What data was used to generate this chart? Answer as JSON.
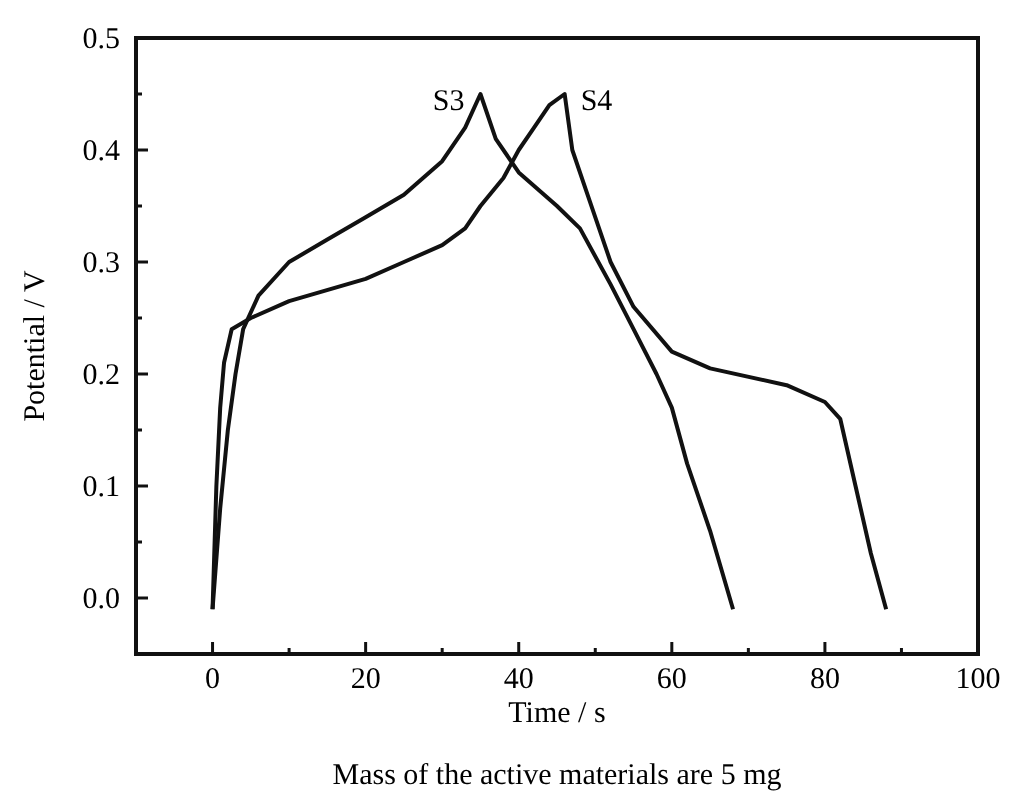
{
  "chart_data": {
    "type": "line",
    "xlabel": "Time / s",
    "ylabel": "Potential / V",
    "xlim": [
      -10,
      100
    ],
    "xticks": [
      0,
      20,
      40,
      60,
      80,
      100
    ],
    "ylim": [
      -0.05,
      0.5
    ],
    "yticks": [
      {
        "value": 0,
        "label": "0.0"
      },
      0.1,
      0.2,
      0.3,
      0.4,
      0.5
    ],
    "grid": false,
    "marker": "none",
    "line_style": "solid",
    "series": [
      {
        "name": "S3",
        "color": "#111111",
        "x": [
          0,
          1,
          2,
          3,
          4,
          6,
          10,
          15,
          20,
          25,
          30,
          33,
          35,
          37,
          40,
          45,
          48,
          52,
          55,
          58,
          60,
          62,
          65,
          68
        ],
        "values": [
          -0.01,
          0.08,
          0.15,
          0.2,
          0.24,
          0.27,
          0.3,
          0.32,
          0.34,
          0.36,
          0.39,
          0.42,
          0.45,
          0.41,
          0.38,
          0.35,
          0.33,
          0.28,
          0.24,
          0.2,
          0.17,
          0.12,
          0.06,
          -0.01
        ]
      },
      {
        "name": "S4",
        "color": "#111111",
        "x": [
          0,
          0.5,
          1,
          1.5,
          2.5,
          5,
          10,
          20,
          25,
          30,
          33,
          35,
          38,
          40,
          42,
          44,
          46,
          47,
          49,
          52,
          55,
          60,
          65,
          75,
          80,
          82,
          84,
          86,
          88
        ],
        "values": [
          -0.01,
          0.1,
          0.17,
          0.21,
          0.24,
          0.25,
          0.265,
          0.285,
          0.3,
          0.315,
          0.33,
          0.35,
          0.375,
          0.4,
          0.42,
          0.44,
          0.45,
          0.4,
          0.36,
          0.3,
          0.26,
          0.22,
          0.205,
          0.19,
          0.175,
          0.16,
          0.1,
          0.04,
          -0.01
        ]
      }
    ],
    "annotations": [
      "Mass of the active materials are 5 mg"
    ]
  }
}
